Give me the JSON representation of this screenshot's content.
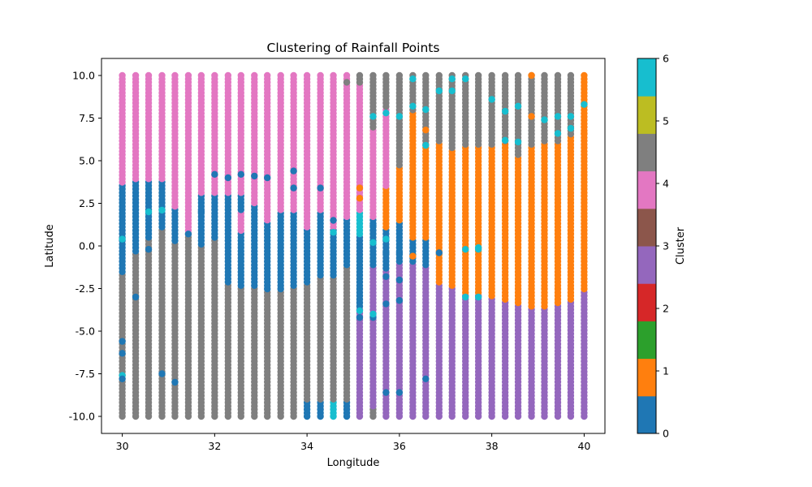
{
  "chart_data": {
    "type": "scatter",
    "title": "Clustering of Rainfall Points",
    "xlabel": "Longitude",
    "ylabel": "Latitude",
    "xlim": [
      29.55,
      40.45
    ],
    "ylim": [
      -11.0,
      11.0
    ],
    "xticks": [
      30,
      32,
      34,
      36,
      38,
      40
    ],
    "yticks": [
      -10.0,
      -7.5,
      -5.0,
      -2.5,
      0.0,
      2.5,
      5.0,
      7.5,
      10.0
    ],
    "grid": false,
    "grid_points": {
      "x_start": 30,
      "x_end": 40,
      "x_count": 36,
      "y_start": -10,
      "y_end": 10,
      "y_count": 100
    },
    "colorbar": {
      "label": "Cluster",
      "range": [
        0,
        6
      ],
      "ticks": [
        0,
        1,
        2,
        3,
        4,
        5,
        6
      ],
      "colors": [
        "#1f77b4",
        "#ff7f0e",
        "#2ca02c",
        "#d62728",
        "#9467bd",
        "#8c564b",
        "#e377c2",
        "#7f7f7f",
        "#bcbd22",
        "#17becf"
      ]
    },
    "columns": [
      {
        "x": 30.0,
        "segments": [
          [
            -10,
            -1.6,
            5
          ],
          [
            -1.6,
            3.6,
            0
          ],
          [
            3.6,
            10,
            4
          ]
        ]
      },
      {
        "x": 30.29,
        "segments": [
          [
            -10,
            -0.4,
            5
          ],
          [
            -0.4,
            1.6,
            0
          ],
          [
            1.6,
            3.8,
            0
          ],
          [
            3.8,
            10,
            4
          ]
        ]
      },
      {
        "x": 30.57,
        "segments": [
          [
            -10,
            0.4,
            5
          ],
          [
            0.4,
            2.2,
            0
          ],
          [
            2.2,
            3.8,
            0
          ],
          [
            3.8,
            10,
            4
          ]
        ]
      },
      {
        "x": 30.86,
        "segments": [
          [
            -10,
            1.0,
            5
          ],
          [
            1.0,
            3.8,
            0
          ],
          [
            3.8,
            10,
            4
          ]
        ]
      },
      {
        "x": 31.14,
        "segments": [
          [
            -10,
            0.2,
            5
          ],
          [
            0.2,
            2.2,
            0
          ],
          [
            2.2,
            10,
            4
          ]
        ]
      },
      {
        "x": 31.43,
        "segments": [
          [
            -10,
            0.8,
            5
          ],
          [
            0.8,
            2.0,
            4
          ],
          [
            2.0,
            10,
            4
          ]
        ]
      },
      {
        "x": 31.71,
        "segments": [
          [
            -10,
            0.0,
            5
          ],
          [
            0.0,
            3.0,
            0
          ],
          [
            3.0,
            10,
            4
          ]
        ]
      },
      {
        "x": 32.0,
        "segments": [
          [
            -10,
            0.6,
            5
          ],
          [
            0.6,
            3.0,
            0
          ],
          [
            3.0,
            10,
            4
          ]
        ]
      },
      {
        "x": 32.29,
        "segments": [
          [
            -10,
            -2.2,
            5
          ],
          [
            -2.2,
            3.0,
            0
          ],
          [
            3.0,
            10,
            4
          ]
        ]
      },
      {
        "x": 32.57,
        "segments": [
          [
            -10,
            -2.4,
            5
          ],
          [
            -2.4,
            0.8,
            0
          ],
          [
            0.8,
            2.0,
            4
          ],
          [
            2.0,
            3.0,
            0
          ],
          [
            3.0,
            10,
            4
          ]
        ]
      },
      {
        "x": 32.86,
        "segments": [
          [
            -10,
            -2.4,
            5
          ],
          [
            -2.4,
            2.5,
            0
          ],
          [
            2.5,
            10,
            4
          ]
        ]
      },
      {
        "x": 33.14,
        "segments": [
          [
            -10,
            -2.6,
            5
          ],
          [
            -2.6,
            1.4,
            0
          ],
          [
            1.4,
            10,
            4
          ]
        ]
      },
      {
        "x": 33.43,
        "segments": [
          [
            -10,
            -2.6,
            5
          ],
          [
            -2.6,
            2.0,
            0
          ],
          [
            2.0,
            10,
            4
          ]
        ]
      },
      {
        "x": 33.71,
        "segments": [
          [
            -10,
            -2.4,
            5
          ],
          [
            -2.4,
            2.0,
            0
          ],
          [
            2.0,
            10,
            4
          ]
        ]
      },
      {
        "x": 34.0,
        "segments": [
          [
            -10,
            -9.0,
            0
          ],
          [
            -9.0,
            -2.2,
            5
          ],
          [
            -2.2,
            1.0,
            0
          ],
          [
            1.0,
            4.6,
            4
          ],
          [
            4.6,
            10,
            4
          ]
        ]
      },
      {
        "x": 34.29,
        "segments": [
          [
            -10,
            -9.0,
            0
          ],
          [
            -9.0,
            -1.8,
            5
          ],
          [
            -1.8,
            2.0,
            0
          ],
          [
            2.0,
            10,
            4
          ]
        ]
      },
      {
        "x": 34.57,
        "segments": [
          [
            -10,
            -9.0,
            6
          ],
          [
            -9.0,
            -1.8,
            5
          ],
          [
            -1.8,
            1.0,
            0
          ],
          [
            1.0,
            3.6,
            4
          ],
          [
            3.6,
            10,
            4
          ]
        ]
      },
      {
        "x": 34.86,
        "segments": [
          [
            -10,
            -9.0,
            0
          ],
          [
            -9.0,
            -1.2,
            5
          ],
          [
            -1.2,
            1.6,
            0
          ],
          [
            1.6,
            10,
            4
          ]
        ]
      },
      {
        "x": 35.14,
        "segments": [
          [
            -10,
            -3.6,
            3
          ],
          [
            -3.6,
            0.6,
            0
          ],
          [
            0.6,
            2.0,
            6
          ],
          [
            2.0,
            9.4,
            4
          ],
          [
            9.4,
            10,
            5
          ]
        ]
      },
      {
        "x": 35.43,
        "segments": [
          [
            -10,
            -9.4,
            5
          ],
          [
            -9.4,
            -1.2,
            3
          ],
          [
            -1.2,
            1.6,
            0
          ],
          [
            1.6,
            6.8,
            4
          ],
          [
            6.8,
            10,
            5
          ]
        ]
      },
      {
        "x": 35.71,
        "segments": [
          [
            -10,
            -1.4,
            3
          ],
          [
            -1.4,
            1.0,
            0
          ],
          [
            1.0,
            3.4,
            1
          ],
          [
            3.4,
            8.0,
            4
          ],
          [
            8.0,
            10,
            5
          ]
        ]
      },
      {
        "x": 36.0,
        "segments": [
          [
            -10,
            -1.0,
            3
          ],
          [
            -1.0,
            1.5,
            0
          ],
          [
            1.5,
            4.6,
            1
          ],
          [
            4.6,
            10,
            5
          ]
        ]
      },
      {
        "x": 36.29,
        "segments": [
          [
            -10,
            -1.0,
            3
          ],
          [
            -1.0,
            0.4,
            0
          ],
          [
            0.4,
            10,
            1
          ],
          [
            7.8,
            10,
            5
          ]
        ]
      },
      {
        "x": 36.57,
        "segments": [
          [
            -10,
            -1.2,
            3
          ],
          [
            -1.2,
            0.4,
            0
          ],
          [
            0.4,
            5.8,
            1
          ],
          [
            5.8,
            10,
            5
          ]
        ]
      },
      {
        "x": 36.86,
        "segments": [
          [
            -10,
            -2.2,
            3
          ],
          [
            -2.2,
            6.0,
            1
          ],
          [
            6.0,
            10,
            5
          ]
        ]
      },
      {
        "x": 37.14,
        "segments": [
          [
            -10,
            -2.4,
            3
          ],
          [
            -2.4,
            5.6,
            1
          ],
          [
            5.6,
            10,
            5
          ]
        ]
      },
      {
        "x": 37.43,
        "segments": [
          [
            -10,
            -2.8,
            3
          ],
          [
            -2.8,
            5.8,
            1
          ],
          [
            5.8,
            10,
            5
          ]
        ]
      },
      {
        "x": 37.71,
        "segments": [
          [
            -10,
            -2.8,
            3
          ],
          [
            -2.8,
            5.8,
            1
          ],
          [
            5.8,
            10,
            5
          ]
        ]
      },
      {
        "x": 38.0,
        "segments": [
          [
            -10,
            -3.0,
            3
          ],
          [
            -3.0,
            5.8,
            1
          ],
          [
            5.8,
            10,
            5
          ]
        ]
      },
      {
        "x": 38.29,
        "segments": [
          [
            -10,
            -3.2,
            3
          ],
          [
            -3.2,
            6.0,
            1
          ],
          [
            6.0,
            10,
            5
          ]
        ]
      },
      {
        "x": 38.57,
        "segments": [
          [
            -10,
            -3.4,
            3
          ],
          [
            -3.4,
            5.2,
            1
          ],
          [
            5.2,
            10,
            5
          ]
        ]
      },
      {
        "x": 38.86,
        "segments": [
          [
            -10,
            -3.6,
            3
          ],
          [
            -3.6,
            5.8,
            1
          ],
          [
            5.8,
            10,
            5
          ]
        ]
      },
      {
        "x": 39.14,
        "segments": [
          [
            -10,
            -3.6,
            3
          ],
          [
            -3.6,
            6.0,
            1
          ],
          [
            6.0,
            10,
            5
          ]
        ]
      },
      {
        "x": 39.43,
        "segments": [
          [
            -10,
            -3.4,
            3
          ],
          [
            -3.4,
            6.0,
            1
          ],
          [
            6.0,
            10,
            5
          ]
        ]
      },
      {
        "x": 39.71,
        "segments": [
          [
            -10,
            -3.2,
            3
          ],
          [
            -3.2,
            6.4,
            1
          ],
          [
            6.4,
            10,
            5
          ]
        ]
      },
      {
        "x": 40.0,
        "segments": [
          [
            -10,
            -2.6,
            3
          ],
          [
            -2.6,
            10,
            1
          ]
        ]
      }
    ],
    "specks": [
      [
        30.0,
        -5.6,
        0
      ],
      [
        30.0,
        -6.3,
        0
      ],
      [
        30.0,
        -7.6,
        6
      ],
      [
        30.0,
        -7.8,
        0
      ],
      [
        30.0,
        0.4,
        6
      ],
      [
        30.29,
        -3.0,
        0
      ],
      [
        30.57,
        -0.2,
        0
      ],
      [
        30.57,
        2.0,
        6
      ],
      [
        30.86,
        -7.5,
        0
      ],
      [
        30.86,
        2.1,
        6
      ],
      [
        31.14,
        -8.0,
        0
      ],
      [
        31.43,
        0.7,
        0
      ],
      [
        31.71,
        2.0,
        0
      ],
      [
        32.0,
        0.5,
        0
      ],
      [
        32.0,
        4.2,
        0
      ],
      [
        32.29,
        4.0,
        0
      ],
      [
        32.57,
        4.2,
        0
      ],
      [
        32.86,
        4.1,
        0
      ],
      [
        33.14,
        4.0,
        0
      ],
      [
        33.71,
        4.4,
        0
      ],
      [
        33.71,
        3.4,
        0
      ],
      [
        34.29,
        3.4,
        0
      ],
      [
        34.57,
        0.8,
        6
      ],
      [
        34.57,
        1.5,
        0
      ],
      [
        34.86,
        9.6,
        5
      ],
      [
        35.14,
        3.4,
        1
      ],
      [
        35.14,
        2.8,
        1
      ],
      [
        35.14,
        -3.8,
        6
      ],
      [
        35.14,
        -4.2,
        0
      ],
      [
        35.43,
        -4.2,
        0
      ],
      [
        35.43,
        -4.0,
        6
      ],
      [
        35.43,
        1.2,
        0
      ],
      [
        35.43,
        0.2,
        6
      ],
      [
        35.43,
        7.6,
        6
      ],
      [
        35.71,
        -3.4,
        0
      ],
      [
        35.71,
        -1.8,
        0
      ],
      [
        35.71,
        -8.6,
        0
      ],
      [
        35.71,
        -0.4,
        0
      ],
      [
        35.71,
        0.4,
        6
      ],
      [
        35.71,
        7.8,
        6
      ],
      [
        36.0,
        -8.6,
        0
      ],
      [
        36.0,
        -3.2,
        0
      ],
      [
        36.0,
        -2.0,
        0
      ],
      [
        36.0,
        -0.4,
        0
      ],
      [
        36.0,
        7.6,
        6
      ],
      [
        36.29,
        9.8,
        6
      ],
      [
        36.29,
        8.2,
        6
      ],
      [
        36.29,
        -0.6,
        1
      ],
      [
        36.57,
        -7.8,
        0
      ],
      [
        36.57,
        5.9,
        6
      ],
      [
        36.57,
        6.8,
        1
      ],
      [
        36.57,
        8.0,
        6
      ],
      [
        36.86,
        9.1,
        6
      ],
      [
        36.86,
        -0.4,
        0
      ],
      [
        37.14,
        9.1,
        6
      ],
      [
        37.14,
        9.8,
        6
      ],
      [
        37.43,
        9.8,
        6
      ],
      [
        37.43,
        -0.2,
        6
      ],
      [
        37.43,
        -3.0,
        6
      ],
      [
        37.71,
        -3.0,
        6
      ],
      [
        37.71,
        -0.1,
        6
      ],
      [
        37.71,
        -0.2,
        6
      ],
      [
        38.0,
        8.6,
        6
      ],
      [
        38.29,
        7.9,
        6
      ],
      [
        38.29,
        6.2,
        6
      ],
      [
        38.57,
        8.2,
        6
      ],
      [
        38.57,
        6.1,
        6
      ],
      [
        38.86,
        10.0,
        1
      ],
      [
        38.86,
        7.6,
        1
      ],
      [
        39.14,
        7.4,
        6
      ],
      [
        39.43,
        7.6,
        6
      ],
      [
        39.43,
        6.6,
        6
      ],
      [
        39.71,
        6.9,
        6
      ],
      [
        39.71,
        7.6,
        6
      ],
      [
        40.0,
        8.3,
        6
      ],
      [
        40.0,
        6.6,
        1
      ]
    ]
  }
}
